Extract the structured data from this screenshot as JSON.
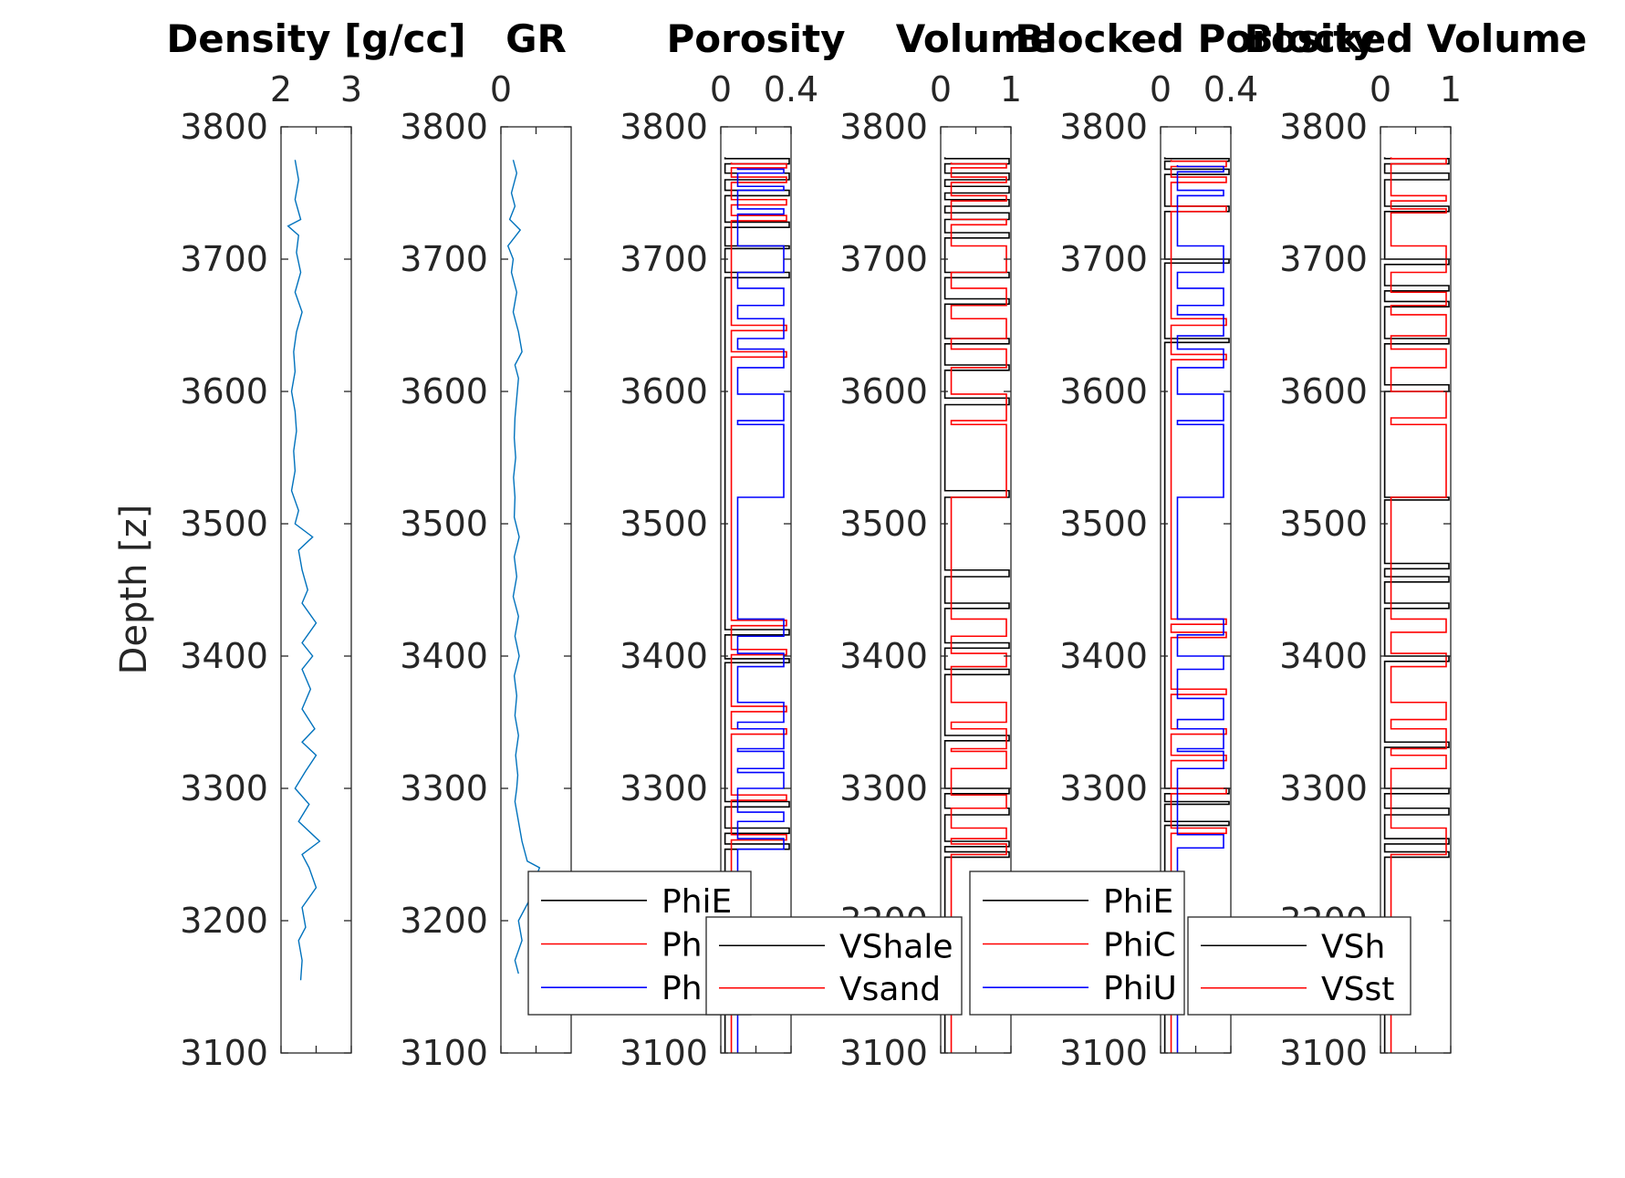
{
  "chart_data": [
    {
      "type": "line",
      "title": "Density [g/cc]",
      "ylabel": "Depth [z]",
      "xlim": [
        2,
        3
      ],
      "xticks": [
        "2",
        "3"
      ],
      "ylim": [
        3100,
        3800
      ],
      "yticks": [
        "3100",
        "3200",
        "3300",
        "3400",
        "3500",
        "3600",
        "3700",
        "3800"
      ],
      "series": [
        {
          "color": "#0072bd",
          "y": [
            3775,
            3760,
            3745,
            3730,
            3725,
            3718,
            3705,
            3690,
            3675,
            3660,
            3645,
            3630,
            3615,
            3600,
            3585,
            3570,
            3555,
            3540,
            3525,
            3510,
            3500,
            3490,
            3480,
            3465,
            3450,
            3440,
            3425,
            3410,
            3400,
            3390,
            3375,
            3360,
            3345,
            3335,
            3325,
            3313,
            3300,
            3288,
            3275,
            3260,
            3250,
            3240,
            3225,
            3210,
            3195,
            3185,
            3170,
            3155
          ],
          "x": [
            2.2,
            2.25,
            2.2,
            2.28,
            2.1,
            2.25,
            2.22,
            2.28,
            2.2,
            2.3,
            2.22,
            2.18,
            2.2,
            2.15,
            2.2,
            2.22,
            2.18,
            2.2,
            2.15,
            2.25,
            2.2,
            2.45,
            2.25,
            2.3,
            2.38,
            2.3,
            2.5,
            2.3,
            2.45,
            2.3,
            2.42,
            2.3,
            2.48,
            2.3,
            2.5,
            2.35,
            2.2,
            2.4,
            2.25,
            2.55,
            2.3,
            2.4,
            2.5,
            2.3,
            2.35,
            2.25,
            2.3,
            2.28
          ]
        }
      ]
    },
    {
      "type": "line",
      "title": "GR",
      "xlim": [
        0,
        200
      ],
      "xticks": [
        "0"
      ],
      "ylim": [
        3100,
        3800
      ],
      "yticks": [
        "3100",
        "3200",
        "3300",
        "3400",
        "3500",
        "3600",
        "3700",
        "3800"
      ],
      "series": [
        {
          "color": "#0072bd",
          "y": [
            3775,
            3765,
            3750,
            3740,
            3730,
            3722,
            3710,
            3700,
            3690,
            3675,
            3660,
            3645,
            3630,
            3620,
            3610,
            3595,
            3580,
            3565,
            3550,
            3535,
            3520,
            3505,
            3490,
            3475,
            3460,
            3445,
            3430,
            3415,
            3400,
            3385,
            3370,
            3355,
            3340,
            3325,
            3310,
            3300,
            3290,
            3275,
            3260,
            3245,
            3240,
            3230,
            3215,
            3200,
            3185,
            3170,
            3160
          ],
          "x": [
            35,
            45,
            30,
            40,
            25,
            55,
            20,
            35,
            30,
            45,
            35,
            50,
            60,
            40,
            50,
            45,
            40,
            38,
            42,
            36,
            40,
            38,
            52,
            38,
            45,
            35,
            50,
            40,
            52,
            38,
            45,
            40,
            50,
            42,
            48,
            45,
            40,
            50,
            60,
            75,
            110,
            95,
            80,
            50,
            60,
            40,
            50
          ]
        }
      ]
    },
    {
      "type": "line",
      "title": "Porosity",
      "xlim": [
        0,
        0.4
      ],
      "xticks": [
        "0",
        "0.4"
      ],
      "ylim": [
        3100,
        3800
      ],
      "yticks": [
        "3100",
        "3200",
        "3300",
        "3400",
        "3500",
        "3600",
        "3700",
        "3800"
      ],
      "legend": [
        "PhiE",
        "Ph",
        "Ph"
      ],
      "legend_position": "bottom",
      "series": [
        {
          "name": "PhiE",
          "color": "#000000",
          "intervals": [
            [
              3776,
              3772
            ],
            [
              3765,
              3760
            ],
            [
              3752,
              3748
            ],
            [
              3728,
              3724
            ],
            [
              3710,
              3708
            ],
            [
              3690,
              3686
            ],
            [
              3420,
              3416
            ],
            [
              3398,
              3395
            ],
            [
              3290,
              3286
            ],
            [
              3270,
              3266
            ],
            [
              3258,
              3254
            ]
          ]
        },
        {
          "name": "Ph",
          "color": "#ff0000",
          "intervals": [
            [
              3772,
              3769
            ],
            [
              3762,
              3758
            ],
            [
              3745,
              3741
            ],
            [
              3733,
              3729
            ],
            [
              3650,
              3646
            ],
            [
              3630,
              3626
            ],
            [
              3427,
              3423
            ],
            [
              3405,
              3401
            ],
            [
              3362,
              3358
            ],
            [
              3345,
              3341
            ],
            [
              3295,
              3291
            ],
            [
              3265,
              3261
            ]
          ]
        },
        {
          "name": "Ph",
          "color": "#0000ff",
          "intervals": [
            [
              3768,
              3765
            ],
            [
              3755,
              3752
            ],
            [
              3738,
              3734
            ],
            [
              3710,
              3690
            ],
            [
              3678,
              3665
            ],
            [
              3655,
              3640
            ],
            [
              3632,
              3618
            ],
            [
              3598,
              3578
            ],
            [
              3575,
              3520
            ],
            [
              3428,
              3415
            ],
            [
              3402,
              3392
            ],
            [
              3365,
              3350
            ],
            [
              3345,
              3330
            ],
            [
              3328,
              3315
            ],
            [
              3312,
              3300
            ],
            [
              3282,
              3275
            ],
            [
              3262,
              3254
            ]
          ]
        }
      ]
    },
    {
      "type": "line",
      "title": "Volume",
      "xlim": [
        0,
        1
      ],
      "xticks": [
        "0",
        "1"
      ],
      "ylim": [
        3100,
        3800
      ],
      "yticks": [
        "3100",
        "3200",
        "3300",
        "3400",
        "3500",
        "3600",
        "3700",
        "3800"
      ],
      "legend": [
        "VShale",
        "Vsand"
      ],
      "legend_position": "bottom",
      "series": [
        {
          "name": "VShale",
          "color": "#000000",
          "intervals": [
            [
              3776,
              3772
            ],
            [
              3765,
              3760
            ],
            [
              3755,
              3750
            ],
            [
              3745,
              3740
            ],
            [
              3735,
              3730
            ],
            [
              3720,
              3716
            ],
            [
              3690,
              3686
            ],
            [
              3670,
              3666
            ],
            [
              3640,
              3636
            ],
            [
              3620,
              3616
            ],
            [
              3595,
              3590
            ],
            [
              3525,
              3520
            ],
            [
              3465,
              3460
            ],
            [
              3440,
              3436
            ],
            [
              3410,
              3406
            ],
            [
              3390,
              3386
            ],
            [
              3340,
              3336
            ],
            [
              3300,
              3296
            ],
            [
              3285,
              3280
            ],
            [
              3260,
              3256
            ],
            [
              3252,
              3248
            ]
          ]
        },
        {
          "name": "Vsand",
          "color": "#ff0000",
          "intervals": [
            [
              3772,
              3769
            ],
            [
              3762,
              3758
            ],
            [
              3748,
              3744
            ],
            [
              3730,
              3726
            ],
            [
              3710,
              3690
            ],
            [
              3678,
              3665
            ],
            [
              3655,
              3640
            ],
            [
              3632,
              3618
            ],
            [
              3598,
              3578
            ],
            [
              3575,
              3520
            ],
            [
              3428,
              3415
            ],
            [
              3402,
              3392
            ],
            [
              3365,
              3350
            ],
            [
              3345,
              3330
            ],
            [
              3328,
              3315
            ],
            [
              3295,
              3285
            ],
            [
              3270,
              3262
            ],
            [
              3258,
              3250
            ]
          ]
        }
      ]
    },
    {
      "type": "line",
      "title": "Blocked Porosity",
      "xlim": [
        0,
        0.4
      ],
      "xticks": [
        "0",
        "0.4"
      ],
      "ylim": [
        3100,
        3800
      ],
      "yticks": [
        "3100",
        "3200",
        "3300",
        "3400",
        "3500",
        "3600",
        "3700",
        "3800"
      ],
      "legend": [
        "PhiE",
        "PhiC",
        "PhiU"
      ],
      "legend_position": "bottom",
      "series": [
        {
          "name": "PhiE",
          "color": "#000000",
          "intervals": [
            [
              3776,
              3774
            ],
            [
              3768,
              3764
            ],
            [
              3740,
              3736
            ],
            [
              3700,
              3697
            ],
            [
              3640,
              3637
            ],
            [
              3300,
              3296
            ],
            [
              3290,
              3288
            ],
            [
              3275,
              3272
            ]
          ]
        },
        {
          "name": "PhiC",
          "color": "#ff0000",
          "intervals": [
            [
              3774,
              3770
            ],
            [
              3762,
              3758
            ],
            [
              3740,
              3736
            ],
            [
              3655,
              3650
            ],
            [
              3628,
              3624
            ],
            [
              3428,
              3424
            ],
            [
              3418,
              3414
            ],
            [
              3375,
              3371
            ],
            [
              3345,
              3341
            ],
            [
              3325,
              3321
            ],
            [
              3300,
              3296
            ],
            [
              3270,
              3266
            ]
          ]
        },
        {
          "name": "PhiU",
          "color": "#0000ff",
          "intervals": [
            [
              3770,
              3766
            ],
            [
              3752,
              3748
            ],
            [
              3710,
              3690
            ],
            [
              3678,
              3665
            ],
            [
              3658,
              3642
            ],
            [
              3632,
              3618
            ],
            [
              3598,
              3578
            ],
            [
              3575,
              3520
            ],
            [
              3428,
              3416
            ],
            [
              3400,
              3390
            ],
            [
              3368,
              3352
            ],
            [
              3345,
              3330
            ],
            [
              3328,
              3315
            ],
            [
              3265,
              3255
            ]
          ]
        }
      ]
    },
    {
      "type": "line",
      "title": "Blocked Volume",
      "xlim": [
        0,
        1
      ],
      "xticks": [
        "0",
        "1"
      ],
      "ylim": [
        3100,
        3800
      ],
      "yticks": [
        "3100",
        "3200",
        "3300",
        "3400",
        "3500",
        "3600",
        "3700",
        "3800"
      ],
      "legend": [
        "VSh",
        "VSst"
      ],
      "legend_position": "bottom",
      "series": [
        {
          "name": "VSh",
          "color": "#000000",
          "intervals": [
            [
              3776,
              3772
            ],
            [
              3765,
              3760
            ],
            [
              3740,
              3736
            ],
            [
              3700,
              3696
            ],
            [
              3680,
              3676
            ],
            [
              3668,
              3664
            ],
            [
              3640,
              3636
            ],
            [
              3605,
              3600
            ],
            [
              3520,
              3518
            ],
            [
              3470,
              3466
            ],
            [
              3460,
              3456
            ],
            [
              3440,
              3436
            ],
            [
              3400,
              3396
            ],
            [
              3335,
              3331
            ],
            [
              3300,
              3296
            ],
            [
              3285,
              3280
            ],
            [
              3262,
              3258
            ],
            [
              3252,
              3248
            ]
          ]
        },
        {
          "name": "VSst",
          "color": "#ff0000",
          "intervals": [
            [
              3776,
              3772
            ],
            [
              3748,
              3744
            ],
            [
              3738,
              3735
            ],
            [
              3710,
              3690
            ],
            [
              3675,
              3665
            ],
            [
              3658,
              3642
            ],
            [
              3632,
              3618
            ],
            [
              3600,
              3580
            ],
            [
              3575,
              3520
            ],
            [
              3428,
              3418
            ],
            [
              3402,
              3392
            ],
            [
              3365,
              3352
            ],
            [
              3345,
              3330
            ],
            [
              3325,
              3315
            ],
            [
              3270,
              3250
            ]
          ]
        }
      ]
    }
  ]
}
